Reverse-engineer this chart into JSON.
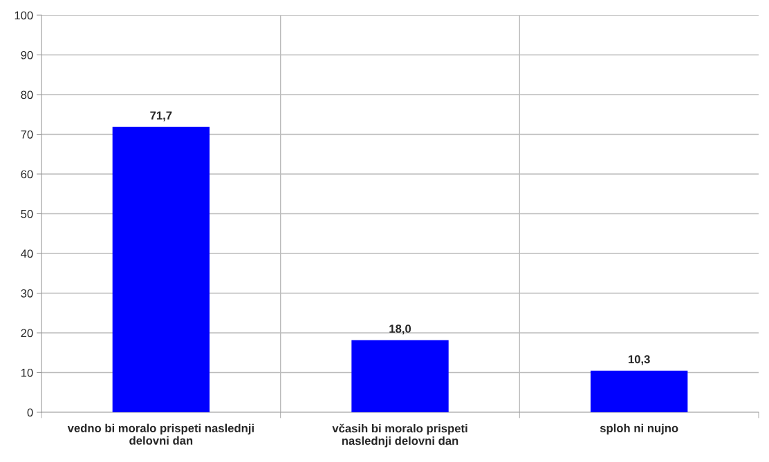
{
  "chart_data": {
    "type": "bar",
    "categories": [
      "vedno bi moralo prispeti naslednji\ndelovni dan",
      "včasih bi moralo prispeti\nnaslednji delovni dan",
      "sploh ni nujno"
    ],
    "values": [
      71.7,
      18.0,
      10.3
    ],
    "value_labels": [
      "71,7",
      "18,0",
      "10,3"
    ],
    "color": "#0000ff",
    "ylim": [
      0,
      100
    ],
    "yticks": [
      0,
      10,
      20,
      30,
      40,
      50,
      60,
      70,
      80,
      90,
      100
    ],
    "grid": true,
    "legend": false
  }
}
